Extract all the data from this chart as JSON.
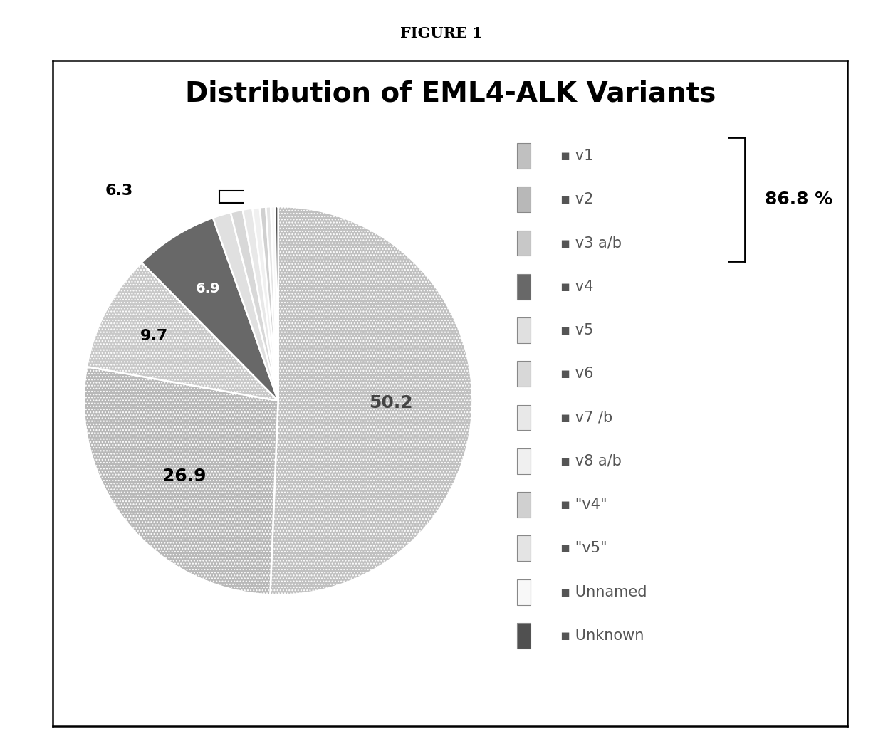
{
  "title": "Distribution of EML4-ALK Variants",
  "figure_label": "FIGURE 1",
  "slices": [
    {
      "label": "v1",
      "value": 50.2,
      "color": "#c0c0c0",
      "hatch": "...."
    },
    {
      "label": "v2",
      "value": 26.9,
      "color": "#b8b8b8",
      "hatch": "...."
    },
    {
      "label": "v3 a/b",
      "value": 9.7,
      "color": "#c8c8c8",
      "hatch": "...."
    },
    {
      "label": "v4",
      "value": 6.9,
      "color": "#686868",
      "hatch": ""
    },
    {
      "label": "v5",
      "value": 1.5,
      "color": "#e0e0e0",
      "hatch": ""
    },
    {
      "label": "v6",
      "value": 1.0,
      "color": "#d8d8d8",
      "hatch": ""
    },
    {
      "label": "v7 /b",
      "value": 0.8,
      "color": "#e8e8e8",
      "hatch": ""
    },
    {
      "label": "v8 a/b",
      "value": 0.6,
      "color": "#f0f0f0",
      "hatch": ""
    },
    {
      "label": "\"v4\"",
      "value": 0.5,
      "color": "#d0d0d0",
      "hatch": ""
    },
    {
      "label": "\"v5\"",
      "value": 0.4,
      "color": "#e4e4e4",
      "hatch": ""
    },
    {
      "label": "Unnamed",
      "value": 0.35,
      "color": "#f8f8f8",
      "hatch": ""
    },
    {
      "label": "Unknown",
      "value": 0.25,
      "color": "#505050",
      "hatch": ""
    }
  ],
  "group_annotation": "86.8 %",
  "background_color": "#ffffff",
  "box_edge_color": "#000000",
  "title_fontsize": 28,
  "legend_fontsize": 15
}
